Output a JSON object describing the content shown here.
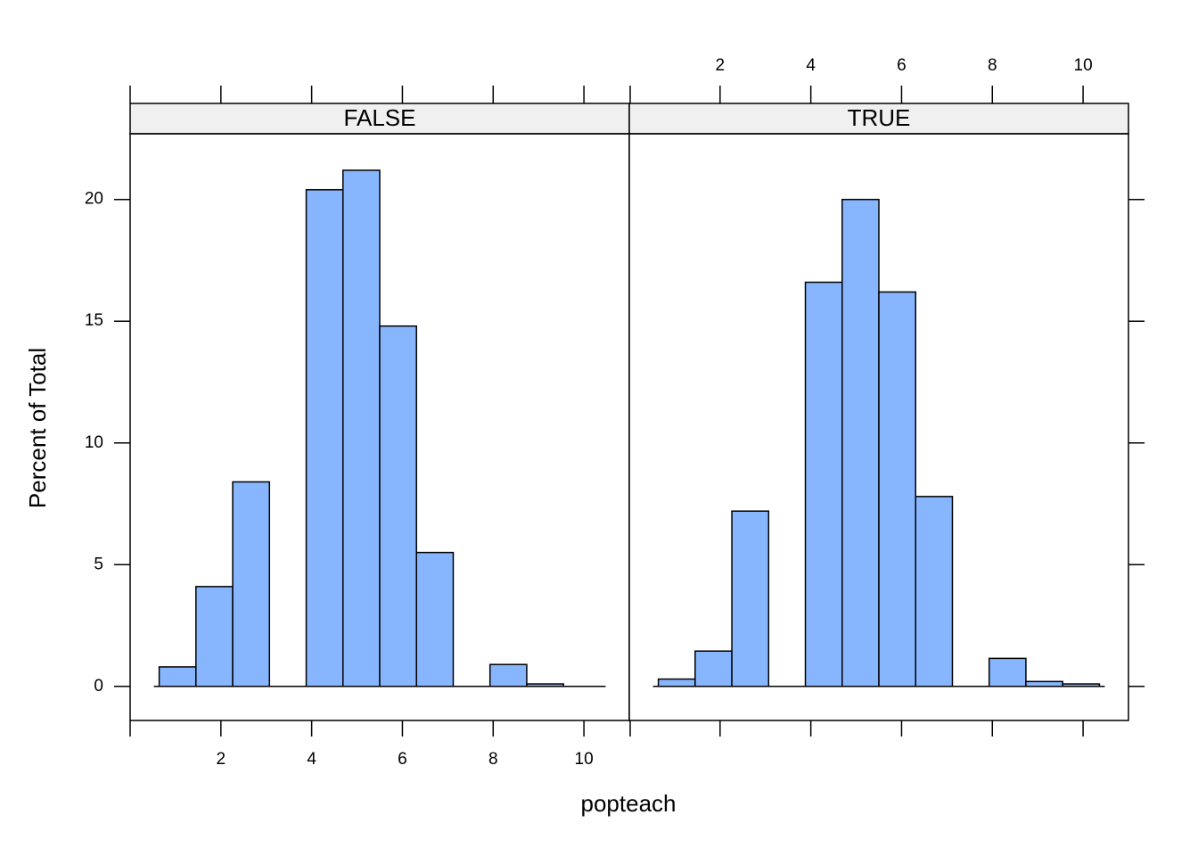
{
  "chart_data": [
    {
      "type": "histogram",
      "title": "FALSE",
      "x_label": "popteach",
      "y_label": "Percent of Total",
      "bins": [
        0.64,
        1.45,
        2.26,
        3.07,
        3.88,
        4.69,
        5.5,
        6.31,
        7.12,
        7.93,
        8.74,
        9.55,
        10.36
      ],
      "values": [
        0.8,
        4.1,
        8.4,
        0,
        20.4,
        21.2,
        14.8,
        5.5,
        0,
        0.9,
        0.1,
        0
      ],
      "color": "#87b6ff",
      "xlim": [
        0,
        11
      ],
      "ylim": [
        -1.4,
        22.7
      ],
      "xticks": [
        2,
        4,
        6,
        8,
        10
      ],
      "yticks": [
        0,
        5,
        10,
        15,
        20
      ]
    },
    {
      "type": "histogram",
      "title": "TRUE",
      "bins": [
        0.64,
        1.45,
        2.26,
        3.07,
        3.88,
        4.69,
        5.5,
        6.31,
        7.12,
        7.93,
        8.74,
        9.55,
        10.36
      ],
      "values": [
        0.3,
        1.45,
        7.2,
        0,
        16.6,
        20.0,
        16.2,
        7.8,
        0,
        1.15,
        0.2,
        0.1
      ],
      "color": "#87b6ff",
      "xlim": [
        0,
        11
      ],
      "ylim": [
        -1.4,
        22.7
      ],
      "xticks": [
        2,
        4,
        6,
        8,
        10
      ],
      "yticks": [
        0,
        5,
        10,
        15,
        20
      ]
    }
  ]
}
